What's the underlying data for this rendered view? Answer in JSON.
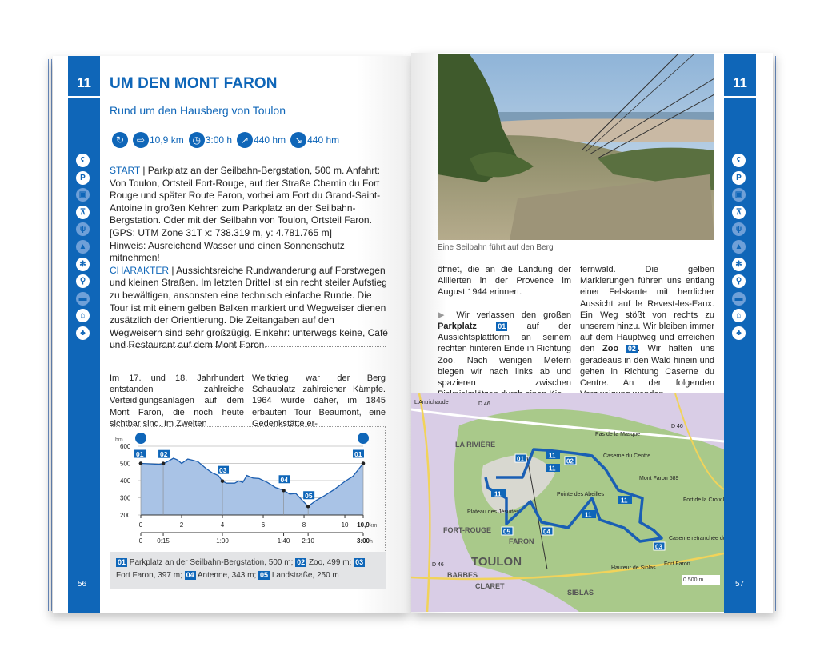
{
  "route_number": "11",
  "left_page": {
    "title": "UM DEN MONT FARON",
    "subtitle": "Rund um den Hausberg von Toulon",
    "facts": [
      {
        "icon": "loop-icon",
        "value": ""
      },
      {
        "icon": "signpost-icon",
        "value": "10,9 km"
      },
      {
        "icon": "clock-icon",
        "value": "3:00 h"
      },
      {
        "icon": "ascent-icon",
        "value": "440 hm"
      },
      {
        "icon": "descent-icon",
        "value": "440 hm"
      }
    ],
    "start_label": "START",
    "start_text": " | Parkplatz an der Seilbahn-Bergstation, 500 m. Anfahrt: Von Toulon, Ortsteil Fort-Rouge, auf der Straße Chemin du Fort Rouge und später Route Faron, vorbei am Fort du Grand-Saint-Antoine in großen Kehren zum Parkplatz an der Seilbahn-Bergstation. Oder mit der Seilbahn von Toulon, Ortsteil Faron.",
    "gps": "[GPS: UTM Zone 31T x: 738.319 m, y: 4.781.765 m]",
    "hint": "Hinweis: Ausreichend Wasser und einen Sonnenschutz mitnehmen!",
    "character_label": "CHARAKTER",
    "character_text": " | Aussichtsreiche Rundwanderung auf Forstwegen und kleinen Straßen. Im letzten Drittel ist ein recht steiler Aufstieg zu bewältigen, ansonsten eine technisch einfache Runde. Die Tour ist mit einem gelben Balken markiert und Wegweiser dienen zusätzlich der Orientierung. Die Zeitangaben auf den Wegweisern sind sehr großzügig. Einkehr: unterwegs keine, Café und Restaurant auf dem Mont Faron.",
    "col1": "Im 17. und 18. Jahrhundert entstanden zahlreiche Verteidigungsanlagen auf dem Mont Faron, die noch heute sichtbar sind. Im Zweiten",
    "col2": "Weltkrieg war der Berg Schauplatz zahlreicher Kämpfe. 1964 wurde daher, im 1845 erbauten Tour Beaumont, eine Gedenkstätte er-",
    "page_number": "56",
    "side_icons": [
      {
        "name": "bear-icon",
        "glyph": "ʕ",
        "active": true
      },
      {
        "name": "parking-icon",
        "glyph": "P",
        "active": true
      },
      {
        "name": "bus-icon",
        "glyph": "▣",
        "active": false
      },
      {
        "name": "cable-car-icon",
        "glyph": "⊼",
        "active": true
      },
      {
        "name": "restaurant-icon",
        "glyph": "ψ",
        "active": false
      },
      {
        "name": "summit-icon",
        "glyph": "▲",
        "active": false
      },
      {
        "name": "snowflake-icon",
        "glyph": "✻",
        "active": true
      },
      {
        "name": "bike-icon",
        "glyph": "⚲",
        "active": true
      },
      {
        "name": "bed-icon",
        "glyph": "▬",
        "active": false
      },
      {
        "name": "museum-icon",
        "glyph": "⌂",
        "active": true
      },
      {
        "name": "tree-icon",
        "glyph": "♣",
        "active": true
      }
    ],
    "legend": [
      {
        "badge": "01",
        "text": "Parkplatz an der Seilbahn-Bergstation, 500 m;"
      },
      {
        "badge": "02",
        "text": "Zoo, 499 m;"
      },
      {
        "badge": "03",
        "text": "Fort Faron, 397 m;"
      },
      {
        "badge": "04",
        "text": "Antenne, 343 m;"
      },
      {
        "badge": "05",
        "text": "Landstraße, 250 m"
      }
    ]
  },
  "chart_data": {
    "type": "area",
    "ylabel": "hm",
    "xunit": "km",
    "tunit": "h",
    "ylim": [
      200,
      600
    ],
    "xlim": [
      0,
      10.9
    ],
    "yticks": [
      200,
      300,
      400,
      500,
      600
    ],
    "xticks": [
      "0",
      "2",
      "4",
      "6",
      "8",
      "10",
      "10,9"
    ],
    "xtick_values": [
      0,
      2,
      4,
      6,
      8,
      10,
      10.9
    ],
    "time_ticks": [
      {
        "km": 0,
        "label": "0"
      },
      {
        "km": 1.1,
        "label": "0:15"
      },
      {
        "km": 4,
        "label": "1:00"
      },
      {
        "km": 7,
        "label": "1:40"
      },
      {
        "km": 8.2,
        "label": "2:10"
      },
      {
        "km": 10.9,
        "label": "3:00"
      }
    ],
    "profile": [
      [
        0,
        500
      ],
      [
        0.5,
        497
      ],
      [
        0.9,
        495
      ],
      [
        1.1,
        499
      ],
      [
        1.3,
        510
      ],
      [
        1.6,
        530
      ],
      [
        1.8,
        520
      ],
      [
        2.0,
        500
      ],
      [
        2.3,
        525
      ],
      [
        2.5,
        520
      ],
      [
        2.8,
        510
      ],
      [
        3.0,
        490
      ],
      [
        3.2,
        470
      ],
      [
        3.5,
        445
      ],
      [
        3.8,
        430
      ],
      [
        4.0,
        397
      ],
      [
        4.2,
        385
      ],
      [
        4.6,
        385
      ],
      [
        4.8,
        398
      ],
      [
        5.0,
        390
      ],
      [
        5.2,
        430
      ],
      [
        5.5,
        415
      ],
      [
        5.8,
        412
      ],
      [
        6.2,
        390
      ],
      [
        6.6,
        360
      ],
      [
        6.9,
        348
      ],
      [
        7.0,
        343
      ],
      [
        7.3,
        322
      ],
      [
        7.6,
        325
      ],
      [
        8.0,
        275
      ],
      [
        8.2,
        250
      ],
      [
        8.6,
        285
      ],
      [
        9.0,
        312
      ],
      [
        9.5,
        350
      ],
      [
        10.0,
        395
      ],
      [
        10.4,
        425
      ],
      [
        10.9,
        500
      ]
    ],
    "waypoints": [
      {
        "id": "01",
        "km": 0,
        "alt": 500
      },
      {
        "id": "02",
        "km": 1.1,
        "alt": 499
      },
      {
        "id": "03",
        "km": 4,
        "alt": 397
      },
      {
        "id": "04",
        "km": 7,
        "alt": 343
      },
      {
        "id": "05",
        "km": 8.2,
        "alt": 250
      },
      {
        "id": "01",
        "km": 10.9,
        "alt": 500
      }
    ],
    "fill_color": "#a9c3e6",
    "line_color": "#1d5fb0"
  },
  "right_page": {
    "caption": "Eine Seilbahn führt auf den Berg",
    "col1_a": "öffnet, die an die Landung der Alliierten in der Provence im August 1944 erinnert.",
    "col1_b_pre": "Wir verlassen den großen ",
    "col1_b_bold": "Parkplatz",
    "col1_b_badge": "01",
    "col1_b_post": " auf der Aussichtsplattform an seinem rechten hinteren Ende in Richtung Zoo. Nach wenigen Metern biegen wir nach links ab und spazieren zwischen Picknickplätzen durch einen Kie-",
    "col2_pre": "fernwald. Die gelben Markierungen führen uns entlang einer Felskante mit herrlicher Aussicht auf le Revest-les-Eaux. Ein Weg stößt von rechts zu unserem hinzu. Wir bleiben immer auf dem Hauptweg und erreichen den ",
    "col2_bold": "Zoo",
    "col2_badge": "02",
    "col2_post": ". Wir halten uns geradeaus in den Wald hinein und gehen in Richtung Caserne du Centre. An der folgenden Verzweigung wenden",
    "page_number": "57",
    "map_labels": [
      "L'Antrichaude",
      "D 46",
      "D 46",
      "LA RIVIÈRE",
      "Pas de la Masque",
      "Caserne du Centre",
      "Mont Faron 589",
      "Pointe des Abeilles",
      "Fort de la Croix Faron",
      "Plateau des Jésuites",
      "FORT-ROUGE",
      "FARON",
      "TOULON",
      "Caserne retranchée du Faron",
      "Fort Faron",
      "Hauteur de Siblas",
      "D 46",
      "BARBES",
      "CLARET",
      "SIBLAS"
    ],
    "map_scale": "0    500 m",
    "map_markers": [
      "01",
      "02",
      "03",
      "04",
      "05"
    ],
    "map_route_labels": [
      "11",
      "11",
      "11",
      "11",
      "11"
    ]
  },
  "colors": {
    "brand_blue": "#0f66b8",
    "legend_bg": "#e3e4e6"
  }
}
